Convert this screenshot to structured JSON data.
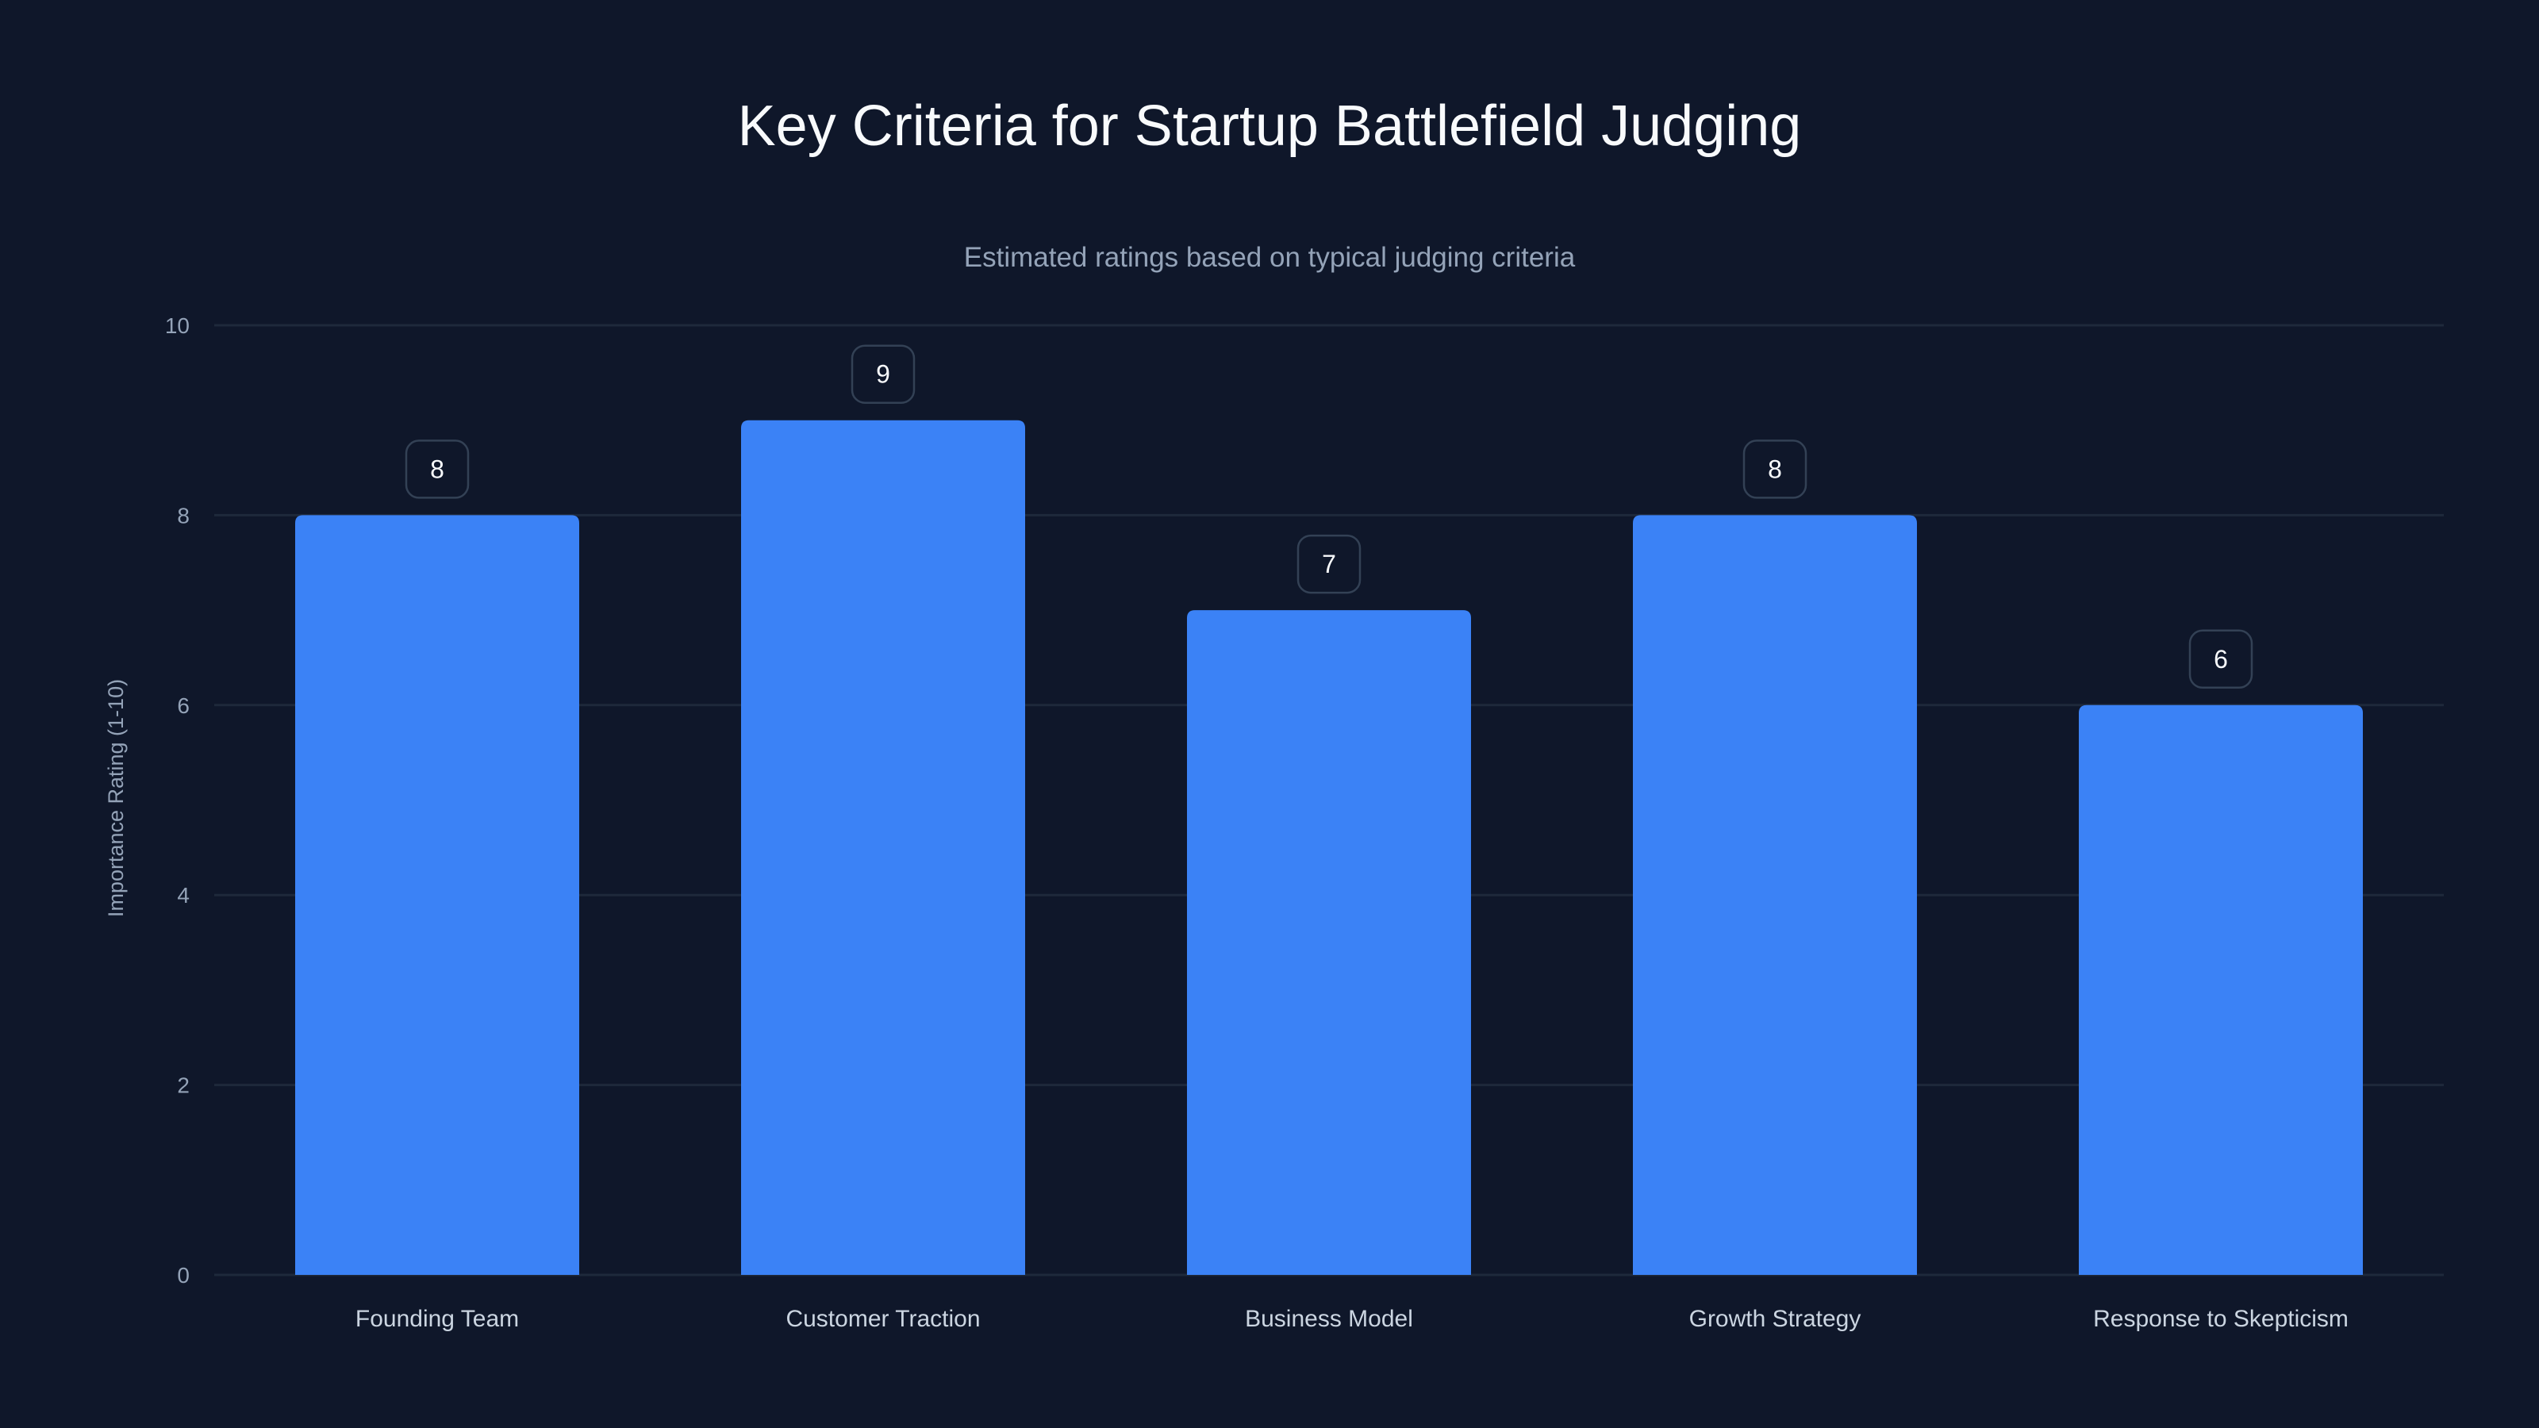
{
  "chart_data": {
    "type": "bar",
    "title": "Key Criteria for Startup Battlefield Judging",
    "subtitle": "Estimated ratings based on typical judging criteria",
    "xlabel": "",
    "ylabel": "Importance Rating (1-10)",
    "ylim": [
      0,
      10
    ],
    "yticks": [
      0,
      2,
      4,
      6,
      8,
      10
    ],
    "grid": true,
    "categories": [
      "Founding Team",
      "Customer Traction",
      "Business Model",
      "Growth Strategy",
      "Response to Skepticism"
    ],
    "values": [
      8,
      9,
      7,
      8,
      6
    ],
    "colors": {
      "bar": "#3b82f6",
      "background": "#0f172a",
      "grid": "#1e293b"
    }
  }
}
